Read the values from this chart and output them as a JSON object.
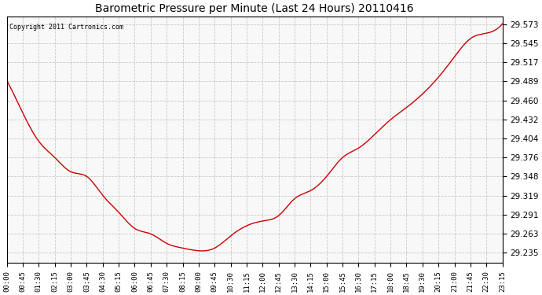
{
  "title": "Barometric Pressure per Minute (Last 24 Hours) 20110416",
  "copyright": "Copyright 2011 Cartronics.com",
  "line_color": "#cc0000",
  "background_color": "#ffffff",
  "plot_background": "#f8f8f8",
  "grid_color": "#c8c8c8",
  "yticks": [
    29.235,
    29.263,
    29.291,
    29.319,
    29.348,
    29.376,
    29.404,
    29.432,
    29.46,
    29.489,
    29.517,
    29.545,
    29.573
  ],
  "ylim": [
    29.22,
    29.585
  ],
  "xtick_labels": [
    "00:00",
    "00:45",
    "01:30",
    "02:15",
    "03:00",
    "03:45",
    "04:30",
    "05:15",
    "06:00",
    "06:45",
    "07:30",
    "08:15",
    "09:00",
    "09:45",
    "10:30",
    "11:15",
    "12:00",
    "12:45",
    "13:30",
    "14:15",
    "15:00",
    "15:45",
    "16:30",
    "17:15",
    "18:00",
    "18:45",
    "19:30",
    "20:15",
    "21:00",
    "21:45",
    "22:30",
    "23:15"
  ],
  "pressure_curve_x": [
    0,
    1,
    2,
    3,
    4,
    5,
    6,
    7,
    8,
    9,
    10,
    11,
    12,
    13,
    14,
    15,
    16,
    17,
    18,
    19,
    20,
    21,
    22,
    23,
    24,
    25,
    26,
    27,
    28,
    29,
    30,
    31
  ],
  "pressure_curve_y": [
    29.49,
    29.442,
    29.4,
    29.376,
    29.355,
    29.348,
    29.32,
    29.295,
    29.271,
    29.263,
    29.249,
    29.242,
    29.238,
    29.242,
    29.26,
    29.275,
    29.282,
    29.29,
    29.315,
    29.327,
    29.348,
    29.376,
    29.39,
    29.41,
    29.432,
    29.45,
    29.47,
    29.495,
    29.525,
    29.552,
    29.56,
    29.574
  ],
  "interp_points": 1440
}
